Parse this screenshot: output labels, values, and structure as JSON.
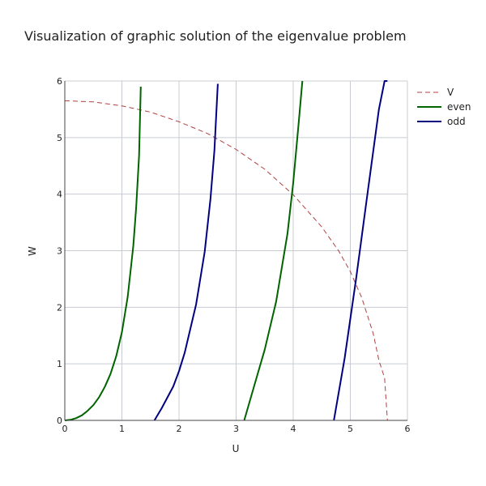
{
  "chart_data": {
    "type": "line",
    "title": "Visualization of graphic solution of the eigenvalue problem",
    "xlabel": "U",
    "ylabel": "W",
    "xlim": [
      0,
      6
    ],
    "ylim": [
      0,
      6
    ],
    "xticks": [
      "0",
      "1",
      "2",
      "3",
      "4",
      "5",
      "6"
    ],
    "yticks": [
      "0",
      "1",
      "2",
      "3",
      "4",
      "5",
      "6"
    ],
    "grid": true,
    "legend_position": "top-right",
    "series": [
      {
        "name": "V",
        "color": "#b04040",
        "dash": true,
        "x": [
          0.0,
          0.5,
          1.0,
          1.5,
          2.0,
          2.5,
          3.0,
          3.5,
          4.0,
          4.5,
          4.8,
          5.0,
          5.2,
          5.4,
          5.5,
          5.6,
          5.65
        ],
        "y": [
          5.65,
          5.63,
          5.56,
          5.45,
          5.28,
          5.07,
          4.79,
          4.44,
          3.99,
          3.42,
          2.99,
          2.63,
          2.17,
          1.54,
          1.06,
          0.75,
          0.0
        ]
      },
      {
        "name": "even",
        "color": "#006400",
        "x": [
          0.0,
          0.1,
          0.2,
          0.3,
          0.4,
          0.5,
          0.6,
          0.7,
          0.8,
          0.9,
          1.0,
          1.1,
          1.15,
          1.2,
          1.25,
          1.3,
          1.33
        ],
        "y": [
          0.0,
          0.01,
          0.04,
          0.09,
          0.17,
          0.27,
          0.41,
          0.59,
          0.82,
          1.13,
          1.56,
          2.18,
          2.63,
          3.09,
          3.76,
          4.68,
          5.9
        ]
      },
      {
        "name": "even",
        "color": "#006400",
        "x": [
          3.1416,
          3.3,
          3.5,
          3.7,
          3.9,
          4.0,
          4.1,
          4.16
        ],
        "y": [
          0.0,
          0.55,
          1.25,
          2.1,
          3.3,
          4.2,
          5.3,
          6.0
        ]
      },
      {
        "name": "odd",
        "color": "#000080",
        "x": [
          1.5708,
          1.7,
          1.9,
          2.0,
          2.1,
          2.3,
          2.45,
          2.55,
          2.62,
          2.68
        ],
        "y": [
          0.0,
          0.22,
          0.6,
          0.87,
          1.2,
          2.05,
          2.98,
          3.91,
          4.77,
          5.95
        ]
      },
      {
        "name": "odd",
        "color": "#000080",
        "x": [
          4.7124,
          4.9,
          5.1,
          5.3,
          5.5,
          5.6,
          5.65
        ],
        "y": [
          0.0,
          1.1,
          2.5,
          4.0,
          5.5,
          6.0,
          6.0
        ]
      }
    ],
    "legend": [
      {
        "label": "V",
        "color": "#b04040",
        "dash": true
      },
      {
        "label": "even",
        "color": "#006400",
        "dash": false
      },
      {
        "label": "odd",
        "color": "#000080",
        "dash": false
      }
    ]
  }
}
